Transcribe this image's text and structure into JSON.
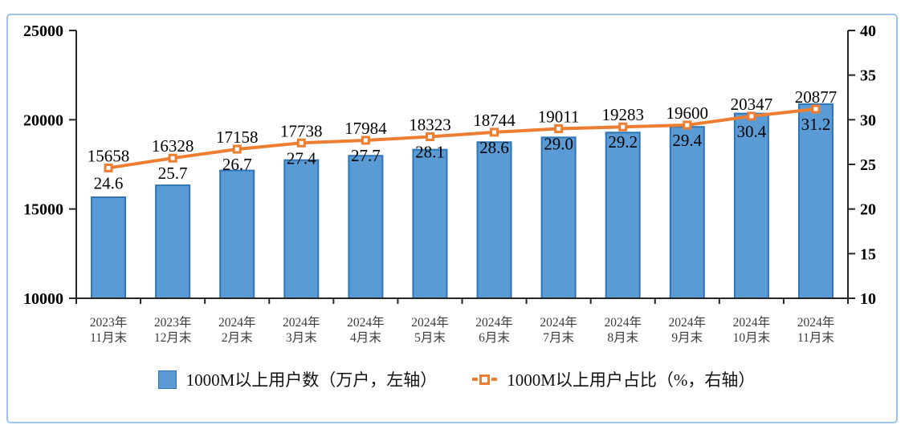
{
  "chart_data": {
    "type": "combo",
    "title": "",
    "grid": false,
    "legend_position": "bottom",
    "categories": [
      [
        "2023年",
        "11月末"
      ],
      [
        "2023年",
        "12月末"
      ],
      [
        "2024年",
        "2月末"
      ],
      [
        "2024年",
        "3月末"
      ],
      [
        "2024年",
        "4月末"
      ],
      [
        "2024年",
        "5月末"
      ],
      [
        "2024年",
        "6月末"
      ],
      [
        "2024年",
        "7月末"
      ],
      [
        "2024年",
        "8月末"
      ],
      [
        "2024年",
        "9月末"
      ],
      [
        "2024年",
        "10月末"
      ],
      [
        "2024年",
        "11月末"
      ]
    ],
    "series": [
      {
        "name": "1000M以上用户数（万户，左轴）",
        "type": "bar",
        "axis": "left",
        "values": [
          15658,
          16328,
          17158,
          17738,
          17984,
          18323,
          18744,
          19011,
          19283,
          19600,
          20347,
          20877
        ],
        "labels": [
          "15658",
          "16328",
          "17158",
          "17738",
          "17984",
          "18323",
          "18744",
          "19011",
          "19283",
          "19600",
          "20347",
          "20877"
        ]
      },
      {
        "name": "1000M以上用户占比（%，右轴）",
        "type": "line",
        "axis": "right",
        "values": [
          24.6,
          25.7,
          26.7,
          27.4,
          27.7,
          28.1,
          28.6,
          29.0,
          29.2,
          29.4,
          30.4,
          31.2
        ],
        "labels": [
          "24.6",
          "25.7",
          "26.7",
          "27.4",
          "27.7",
          "28.1",
          "28.6",
          "29.0",
          "29.2",
          "29.4",
          "30.4",
          "31.2"
        ]
      }
    ],
    "left_axis": {
      "min": 10000,
      "max": 25000,
      "ticks": [
        10000,
        15000,
        20000,
        25000
      ]
    },
    "right_axis": {
      "min": 10,
      "max": 40,
      "ticks": [
        10,
        15,
        20,
        25,
        30,
        35,
        40
      ]
    }
  },
  "colors": {
    "bar_fill": "#5B9BD5",
    "bar_border": "#2E75B6",
    "line": "#ED7D31",
    "marker_center": "#FFFFFF",
    "frame_border": "#9DC3E6",
    "axis": "#262626",
    "data_label": "#000000",
    "category_label": "#3B3B3B"
  }
}
